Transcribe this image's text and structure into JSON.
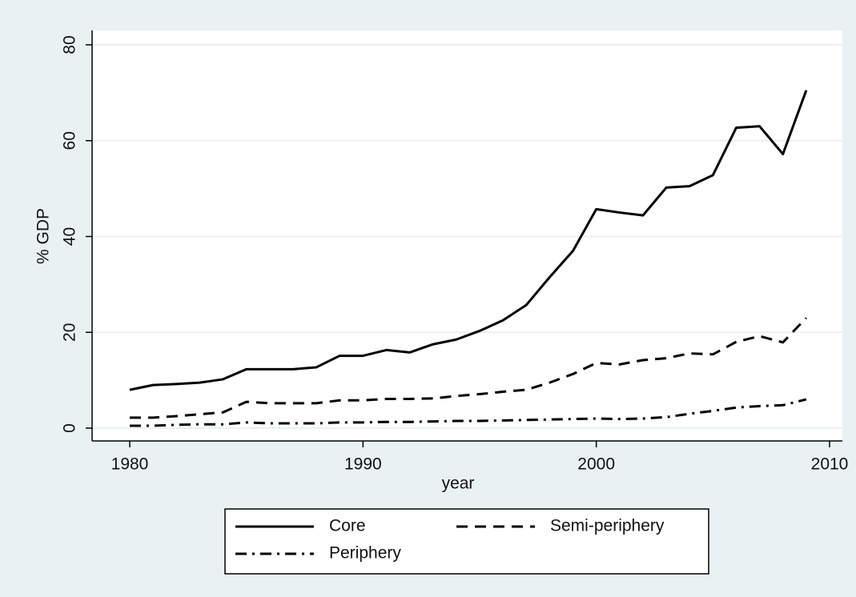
{
  "chart_data": {
    "type": "line",
    "x_label": "year",
    "y_label": "% GDP",
    "x": [
      1980,
      1981,
      1982,
      1983,
      1984,
      1985,
      1986,
      1987,
      1988,
      1989,
      1990,
      1991,
      1992,
      1993,
      1994,
      1995,
      1996,
      1997,
      1998,
      1999,
      2000,
      2001,
      2002,
      2003,
      2004,
      2005,
      2006,
      2007,
      2008,
      2009
    ],
    "series": [
      {
        "name": "Core",
        "color": "#000000",
        "linestyle": "solid",
        "values": [
          8,
          9,
          9.2,
          9.5,
          10.2,
          12.3,
          12.3,
          12.3,
          12.7,
          15.1,
          15.1,
          16.3,
          15.8,
          17.5,
          18.5,
          20.3,
          22.5,
          25.7,
          31.5,
          37,
          45.7,
          45,
          44.4,
          50.2,
          50.5,
          52.8,
          62.7,
          63,
          57.2,
          70.5
        ]
      },
      {
        "name": "Semi-periphery",
        "color": "#000000",
        "linestyle": "dashed",
        "values": [
          2.2,
          2.2,
          2.5,
          2.9,
          3.3,
          5.5,
          5.2,
          5.2,
          5.2,
          5.8,
          5.8,
          6.1,
          6.1,
          6.2,
          6.7,
          7.1,
          7.6,
          8,
          9.5,
          11.3,
          13.6,
          13.3,
          14.2,
          14.6,
          15.6,
          15.4,
          18,
          19.2,
          17.9,
          23
        ]
      },
      {
        "name": "Periphery",
        "color": "#000000",
        "linestyle": "dashdot",
        "values": [
          0.5,
          0.5,
          0.7,
          0.8,
          0.8,
          1.2,
          1,
          1,
          1,
          1.2,
          1.2,
          1.3,
          1.3,
          1.4,
          1.5,
          1.5,
          1.6,
          1.7,
          1.8,
          1.9,
          2,
          1.9,
          2,
          2.3,
          3,
          3.6,
          4.3,
          4.6,
          4.8,
          6
        ]
      }
    ],
    "xlim": [
      1980,
      2010
    ],
    "xticks": [
      1980,
      1990,
      2000,
      2010
    ],
    "ylim": [
      0,
      80
    ],
    "yticks": [
      0,
      20,
      40,
      60,
      80
    ],
    "grid": true,
    "legend": "bottom"
  }
}
